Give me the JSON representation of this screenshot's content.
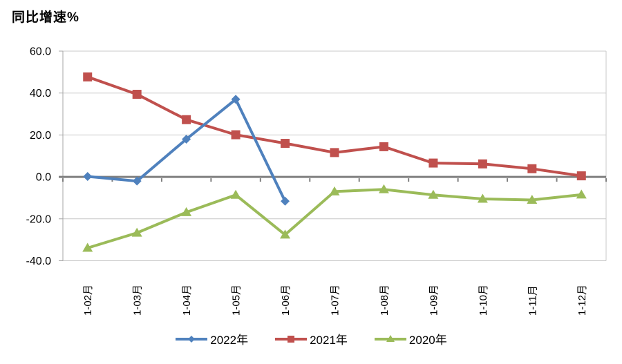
{
  "title": "同比增速%",
  "chart_data": {
    "type": "line",
    "title": "同比增速%",
    "ylabel": "同比增速%",
    "xlabel": "",
    "grid": true,
    "legend_position": "bottom",
    "ylim": [
      -40,
      60
    ],
    "ytick_step": 20,
    "yticks": [
      {
        "v": 60,
        "label": "60.0"
      },
      {
        "v": 40,
        "label": "40.0"
      },
      {
        "v": 20,
        "label": "20.0"
      },
      {
        "v": 0,
        "label": "0.0"
      },
      {
        "v": -20,
        "label": "-20.0"
      },
      {
        "v": -40,
        "label": "-40.0"
      }
    ],
    "categories": [
      "1-02月",
      "1-03月",
      "1-04月",
      "1-05月",
      "1-06月",
      "1-07月",
      "1-08月",
      "1-09月",
      "1-10月",
      "1-11月",
      "1-12月"
    ],
    "series": [
      {
        "name": "2022年",
        "marker": "diamond",
        "color": "#4F81BD",
        "values": [
          0.2,
          -2.0,
          18.0,
          37.0,
          -11.6,
          null,
          null,
          null,
          null,
          null,
          null
        ]
      },
      {
        "name": "2021年",
        "marker": "square",
        "color": "#C0504D",
        "values": [
          47.7,
          39.4,
          27.3,
          20.1,
          16.0,
          11.6,
          14.4,
          6.6,
          6.2,
          3.9,
          0.5
        ]
      },
      {
        "name": "2020年",
        "marker": "triangle",
        "color": "#9BBB59",
        "values": [
          -33.9,
          -26.7,
          -16.9,
          -8.6,
          -27.6,
          -7.0,
          -6.0,
          -8.6,
          -10.5,
          -11.0,
          -8.5
        ]
      }
    ]
  },
  "colors": {
    "gridline": "#C8C8C8",
    "axis": "#A6A6A6",
    "zero_line": "#7F7F7F",
    "tick": "#7F7F7F",
    "text": "#000000",
    "background": "#FFFFFF"
  }
}
